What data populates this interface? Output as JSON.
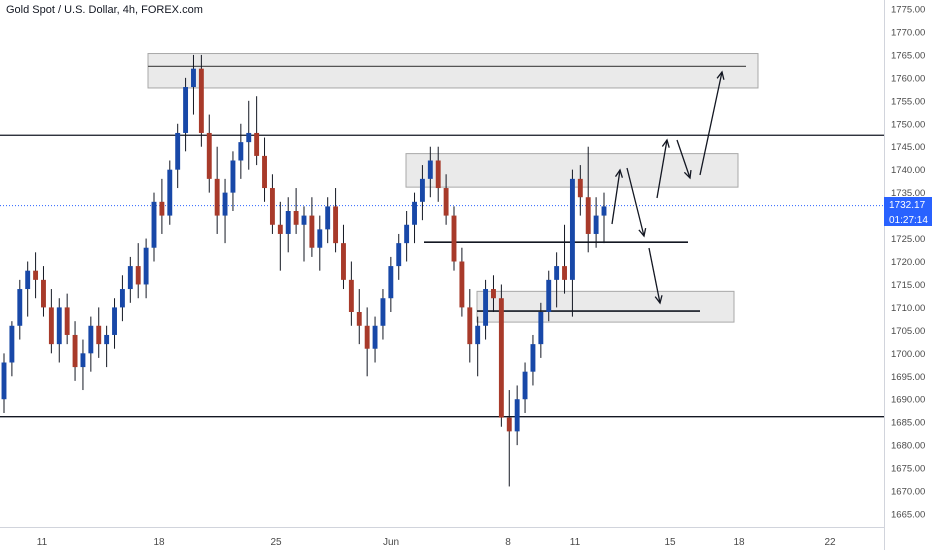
{
  "header": {
    "title": "Gold Spot / U.S. Dollar, 4h, FOREX.com"
  },
  "colors": {
    "up": "#1848a8",
    "down": "#a83a2a",
    "wick": "#131722",
    "zone_fill": "#e6e6e6",
    "zone_stroke": "#a8a8a8",
    "line": "#131722",
    "dotted": "#2962ff",
    "price_tag_bg": "#2962ff",
    "price_tag_text": "#ffffff",
    "axis_text": "#4a4a4a"
  },
  "price_tag": {
    "price": "1732.17",
    "timer": "01:27:14"
  },
  "chart_data": {
    "type": "candlestick",
    "ylim": [
      1661,
      1779
    ],
    "y_ticks": [
      1665,
      1670,
      1675,
      1680,
      1685,
      1690,
      1695,
      1700,
      1705,
      1710,
      1715,
      1720,
      1725,
      1730,
      1735,
      1740,
      1745,
      1750,
      1755,
      1760,
      1765,
      1770,
      1775
    ],
    "y_tick_labels": [
      "1665.00",
      "1670.00",
      "1675.00",
      "1680.00",
      "1685.00",
      "1690.00",
      "1695.00",
      "1700.00",
      "1705.00",
      "1710.00",
      "1715.00",
      "1720.00",
      "1725.00",
      "1730.00",
      "1735.00",
      "1740.00",
      "1745.00",
      "1750.00",
      "1755.00",
      "1760.00",
      "1765.00",
      "1770.00",
      "1775.00"
    ],
    "x_labels": [
      "11",
      "18",
      "25",
      "Jun",
      "8",
      "11",
      "15",
      "18",
      "22"
    ],
    "current_price": 1732.17,
    "horizontal_levels": [
      1747.5,
      1686.2
    ],
    "short_levels": [
      {
        "price": 1762.5,
        "from": "18",
        "to": "18"
      },
      {
        "price": 1724.2,
        "from": "Jun",
        "to": "15"
      },
      {
        "price": 1709.2,
        "from": "8",
        "to": "15"
      }
    ],
    "zones": [
      {
        "low": 1757.8,
        "high": 1765.3
      },
      {
        "low": 1736.2,
        "high": 1743.5
      },
      {
        "low": 1706.8,
        "high": 1713.5
      }
    ],
    "candles": [
      [
        1690,
        1700,
        1687,
        1698
      ],
      [
        1698,
        1707,
        1695,
        1706
      ],
      [
        1706,
        1716,
        1703,
        1714
      ],
      [
        1714,
        1720,
        1708,
        1718
      ],
      [
        1718,
        1722,
        1712,
        1716
      ],
      [
        1716,
        1719,
        1708,
        1710
      ],
      [
        1710,
        1714,
        1700,
        1702
      ],
      [
        1702,
        1712,
        1698,
        1710
      ],
      [
        1710,
        1713,
        1702,
        1704
      ],
      [
        1704,
        1707,
        1694,
        1697
      ],
      [
        1697,
        1703,
        1692,
        1700
      ],
      [
        1700,
        1708,
        1696,
        1706
      ],
      [
        1706,
        1710,
        1699,
        1702
      ],
      [
        1702,
        1706,
        1697,
        1704
      ],
      [
        1704,
        1712,
        1701,
        1710
      ],
      [
        1710,
        1717,
        1707,
        1714
      ],
      [
        1714,
        1721,
        1711,
        1719
      ],
      [
        1719,
        1724,
        1712,
        1715
      ],
      [
        1715,
        1725,
        1712,
        1723
      ],
      [
        1723,
        1735,
        1720,
        1733
      ],
      [
        1733,
        1738,
        1726,
        1730
      ],
      [
        1730,
        1742,
        1728,
        1740
      ],
      [
        1740,
        1750,
        1736,
        1748
      ],
      [
        1748,
        1760,
        1744,
        1758
      ],
      [
        1758,
        1765,
        1752,
        1762
      ],
      [
        1762,
        1765,
        1745,
        1748
      ],
      [
        1748,
        1752,
        1735,
        1738
      ],
      [
        1738,
        1745,
        1726,
        1730
      ],
      [
        1730,
        1738,
        1724,
        1735
      ],
      [
        1735,
        1744,
        1731,
        1742
      ],
      [
        1742,
        1750,
        1738,
        1746
      ],
      [
        1746,
        1755,
        1740,
        1748
      ],
      [
        1748,
        1756,
        1741,
        1743
      ],
      [
        1743,
        1747,
        1733,
        1736
      ],
      [
        1736,
        1739,
        1726,
        1728
      ],
      [
        1728,
        1733,
        1718,
        1726
      ],
      [
        1726,
        1734,
        1722,
        1731
      ],
      [
        1731,
        1736,
        1726,
        1728
      ],
      [
        1728,
        1732,
        1720,
        1730
      ],
      [
        1730,
        1734,
        1721,
        1723
      ],
      [
        1723,
        1730,
        1718,
        1727
      ],
      [
        1727,
        1734,
        1724,
        1732
      ],
      [
        1732,
        1736,
        1722,
        1724
      ],
      [
        1724,
        1728,
        1714,
        1716
      ],
      [
        1716,
        1720,
        1706,
        1709
      ],
      [
        1709,
        1714,
        1702,
        1706
      ],
      [
        1706,
        1710,
        1695,
        1701
      ],
      [
        1701,
        1708,
        1698,
        1706
      ],
      [
        1706,
        1714,
        1703,
        1712
      ],
      [
        1712,
        1721,
        1709,
        1719
      ],
      [
        1719,
        1726,
        1716,
        1724
      ],
      [
        1724,
        1731,
        1720,
        1728
      ],
      [
        1728,
        1735,
        1724,
        1733
      ],
      [
        1733,
        1741,
        1729,
        1738
      ],
      [
        1738,
        1745,
        1734,
        1742
      ],
      [
        1742,
        1745,
        1733,
        1736
      ],
      [
        1736,
        1739,
        1728,
        1730
      ],
      [
        1730,
        1732,
        1718,
        1720
      ],
      [
        1720,
        1723,
        1708,
        1710
      ],
      [
        1710,
        1714,
        1698,
        1702
      ],
      [
        1702,
        1708,
        1695,
        1706
      ],
      [
        1706,
        1716,
        1703,
        1714
      ],
      [
        1714,
        1717,
        1709,
        1712
      ],
      [
        1712,
        1715,
        1684,
        1686
      ],
      [
        1686,
        1692,
        1671,
        1683
      ],
      [
        1683,
        1693,
        1680,
        1690
      ],
      [
        1690,
        1698,
        1687,
        1696
      ],
      [
        1696,
        1704,
        1693,
        1702
      ],
      [
        1702,
        1711,
        1699,
        1709
      ],
      [
        1709,
        1718,
        1707,
        1716
      ],
      [
        1716,
        1722,
        1710,
        1719
      ],
      [
        1719,
        1728,
        1713,
        1716
      ],
      [
        1716,
        1740,
        1708,
        1738
      ],
      [
        1738,
        1741,
        1730,
        1734
      ],
      [
        1734,
        1745,
        1722,
        1726
      ],
      [
        1726,
        1734,
        1723,
        1730
      ],
      [
        1730,
        1735,
        1724,
        1732
      ]
    ]
  }
}
